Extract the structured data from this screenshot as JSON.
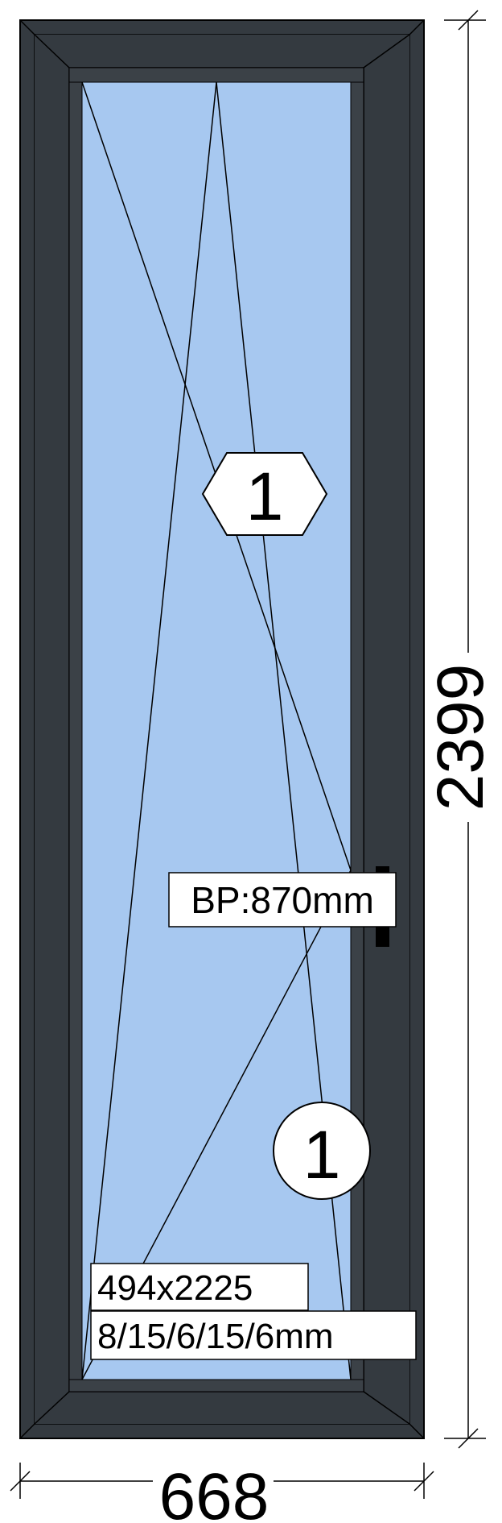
{
  "dimensions": {
    "width_label": "668",
    "height_label": "2399"
  },
  "markers": {
    "hexagon_label": "1",
    "circle_label": "1"
  },
  "labels": {
    "handle_height": "BP:870mm",
    "glass_size": "494x2225",
    "glass_spec": "8/15/6/15/6mm"
  },
  "colors": {
    "frame": "#343A40",
    "glass": "#A7C8F0",
    "line": "#000000"
  }
}
